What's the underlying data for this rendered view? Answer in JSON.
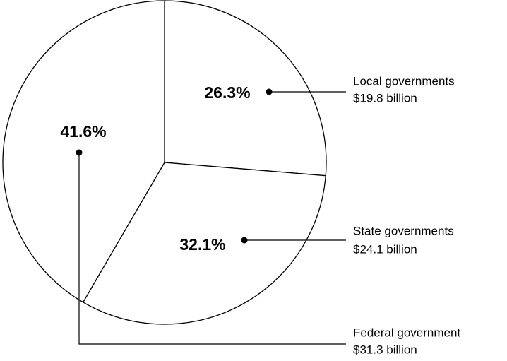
{
  "chart_data": {
    "type": "pie",
    "categories": [
      "Local governments",
      "State governments",
      "Federal government"
    ],
    "values": [
      26.3,
      32.1,
      41.6
    ],
    "value_labels": [
      "26.3%",
      "32.1%",
      "41.6%"
    ],
    "amounts": [
      "$19.8 billion",
      "$24.1 billion",
      "$31.3 billion"
    ],
    "color": "#ffffff"
  }
}
